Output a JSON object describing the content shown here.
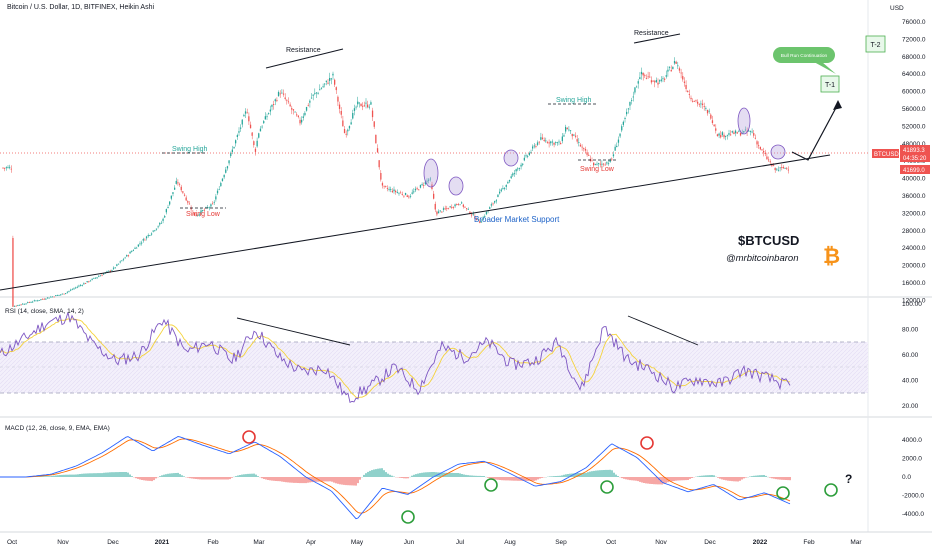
{
  "header": {
    "symbol_title": "Bitcoin / U.S. Dollar, 1D, BITFINEX, Heikin Ashi"
  },
  "colors": {
    "bull": "#26a69a",
    "bear": "#ef5350",
    "rsi_line": "#7e57c2",
    "rsi_sma": "#f5d33b",
    "macd_line": "#2962ff",
    "signal_line": "#ff6d00",
    "support": "#1e63c8",
    "swing_high": "#26a69a",
    "swing_low": "#e53935",
    "circle_red": "#e53935",
    "circle_green": "#2e9e3c",
    "target_box": "#7bd389",
    "target_bg": "#e8f8ea",
    "btc_logo": "#f7931a",
    "price_tag": "#ef5350"
  },
  "price_axis": {
    "unit": "USD",
    "ticks": [
      "76000.0",
      "72000.0",
      "68000.0",
      "64000.0",
      "60000.0",
      "56000.0",
      "52000.0",
      "48000.0",
      "44000.0",
      "40000.0",
      "36000.0",
      "32000.0",
      "28000.0",
      "24000.0",
      "20000.0",
      "16000.0",
      "12000.0"
    ]
  },
  "price_tags": {
    "symbol": "BTCUSD",
    "last": "41893.3",
    "countdown": "04:35:20",
    "prev": "41699.0"
  },
  "rsi": {
    "label": "RSI (14, close, SMA, 14, 2)",
    "ticks": [
      "100.00",
      "80.00",
      "60.00",
      "40.00",
      "20.00"
    ]
  },
  "macd": {
    "label": "MACD (12, 26, close, 9, EMA, EMA)",
    "ticks": [
      "4000.0",
      "2000.0",
      "0.0",
      "-2000.0",
      "-4000.0"
    ]
  },
  "time_axis": [
    "Oct",
    "Nov",
    "Dec",
    "2021",
    "Feb",
    "Mar",
    "Apr",
    "May",
    "Jun",
    "Jul",
    "Aug",
    "Sep",
    "Oct",
    "Nov",
    "Dec",
    "2022",
    "Feb",
    "Mar"
  ],
  "annotations": {
    "resistance_1": "Resistance",
    "resistance_2": "Resistance",
    "swing_high_1": "Swing High",
    "swing_low_1": "Swing Low",
    "swing_high_2": "Swing High",
    "swing_low_2": "Swing Low",
    "support": "Broader Market Support",
    "callout": "Bull Run Continuation",
    "t1": "T-1",
    "t2": "T-2",
    "ticker": "$BTCUSD",
    "handle": "@mrbitcoinbaron",
    "btc_symbol": "₿",
    "question": "?"
  },
  "chart_data": [
    {
      "type": "candlestick",
      "title": "Bitcoin / U.S. Dollar, 1D, BITFINEX, Heikin Ashi",
      "ylabel": "USD",
      "ylim": [
        10000,
        78000
      ],
      "x": [
        "Oct",
        "Nov",
        "Dec",
        "2021",
        "Feb",
        "Mar",
        "Apr",
        "May",
        "Jun",
        "Jul",
        "Aug",
        "Sep",
        "Oct",
        "Nov",
        "Dec",
        "2022",
        "Feb",
        "Mar"
      ],
      "close_path": [
        [
          "Oct",
          10600
        ],
        [
          "Nov",
          13500
        ],
        [
          "Dec",
          19200
        ],
        [
          "2021",
          30000
        ],
        [
          "Jan-08",
          39500
        ],
        [
          "Jan-22",
          31500
        ],
        [
          "Feb",
          34000
        ],
        [
          "Feb-21",
          56000
        ],
        [
          "Feb-28",
          46000
        ],
        [
          "Mar",
          51000
        ],
        [
          "Mar-13",
          60000
        ],
        [
          "Mar-25",
          53000
        ],
        [
          "Apr",
          58500
        ],
        [
          "Apr-14",
          63500
        ],
        [
          "Apr-25",
          50000
        ],
        [
          "May",
          57000
        ],
        [
          "May-10",
          57000
        ],
        [
          "May-19",
          38000
        ],
        [
          "Jun",
          36000
        ],
        [
          "Jun-14",
          40000
        ],
        [
          "Jun-22",
          32000
        ],
        [
          "Jul",
          34500
        ],
        [
          "Jul-20",
          30000
        ],
        [
          "Aug",
          40000
        ],
        [
          "Aug-22",
          49000
        ],
        [
          "Sep",
          48000
        ],
        [
          "Sep-07",
          52000
        ],
        [
          "Sep-21",
          43000
        ],
        [
          "Oct",
          44000
        ],
        [
          "Oct-20",
          64000
        ],
        [
          "Nov",
          62000
        ],
        [
          "Nov-10",
          67000
        ],
        [
          "Nov-20",
          59000
        ],
        [
          "Dec",
          55000
        ],
        [
          "Dec-04",
          50000
        ],
        [
          "Dec-27",
          50800
        ],
        [
          "2022",
          47000
        ],
        [
          "Jan-10",
          42000
        ],
        [
          "Jan-18",
          42500
        ]
      ],
      "last": 41893.3
    },
    {
      "type": "line",
      "title": "RSI (14, close, SMA, 14, 2)",
      "ylim": [
        15,
        100
      ],
      "bands": [
        30,
        70
      ],
      "series": [
        {
          "name": "RSI",
          "values": [
            60,
            72,
            85,
            90,
            68,
            55,
            60,
            88,
            62,
            70,
            55,
            80,
            58,
            46,
            50,
            25,
            36,
            50,
            33,
            66,
            58,
            70,
            52,
            55,
            70,
            32,
            82,
            56,
            48,
            34,
            41,
            37,
            48,
            42,
            35
          ]
        }
      ]
    },
    {
      "type": "line",
      "title": "MACD (12, 26, close, 9, EMA, EMA)",
      "ylim": [
        -5000,
        5200
      ],
      "series": [
        {
          "name": "MACD",
          "values": [
            0,
            0,
            300,
            1200,
            2600,
            4400,
            2800,
            4400,
            3400,
            2500,
            3800,
            2200,
            0,
            -1500,
            -4600,
            -1200,
            -1900,
            0,
            1400,
            1700,
            400,
            -1000,
            -500,
            1000,
            3600,
            2100,
            -600,
            -1600,
            -800,
            -2500,
            -1700,
            -2900
          ]
        }
      ]
    }
  ]
}
